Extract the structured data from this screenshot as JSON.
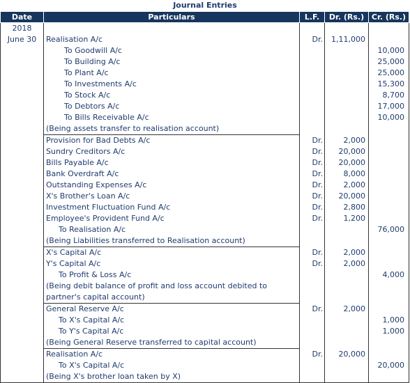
{
  "title": "Journal Entries",
  "headers": {
    "date": "Date",
    "particulars": "Particulars",
    "lf": "L.F.",
    "dr": "Dr. (Rs.)",
    "cr": "Cr. (Rs.)"
  },
  "rows": [
    {
      "date": "2018",
      "particulars": "",
      "indent": 0,
      "lf": "",
      "dr": "",
      "cr": "",
      "sep": false
    },
    {
      "date": "June 30",
      "particulars": "Realisation A/c",
      "indent": 0,
      "lf": "Dr.",
      "dr": "1,11,000",
      "cr": "",
      "sep": false
    },
    {
      "date": "",
      "particulars": "To Goodwill A/c",
      "indent": 2,
      "lf": "",
      "dr": "",
      "cr": "10,000",
      "sep": false
    },
    {
      "date": "",
      "particulars": "To Building A/c",
      "indent": 2,
      "lf": "",
      "dr": "",
      "cr": "25,000",
      "sep": false
    },
    {
      "date": "",
      "particulars": "To Plant A/c",
      "indent": 2,
      "lf": "",
      "dr": "",
      "cr": "25,000",
      "sep": false
    },
    {
      "date": "",
      "particulars": "To Investments A/c",
      "indent": 2,
      "lf": "",
      "dr": "",
      "cr": "15,300",
      "sep": false
    },
    {
      "date": "",
      "particulars": "To Stock A/c",
      "indent": 2,
      "lf": "",
      "dr": "",
      "cr": "8,700",
      "sep": false
    },
    {
      "date": "",
      "particulars": "To Debtors A/c",
      "indent": 2,
      "lf": "",
      "dr": "",
      "cr": "17,000",
      "sep": false
    },
    {
      "date": "",
      "particulars": "To Bills Receivable A/c",
      "indent": 2,
      "lf": "",
      "dr": "",
      "cr": "10,000",
      "sep": false
    },
    {
      "date": "",
      "particulars": "(Being assets transfer to realisation account)",
      "indent": 0,
      "lf": "",
      "dr": "",
      "cr": "",
      "sep": false
    },
    {
      "date": "",
      "particulars": "Provision for Bad Debts A/c",
      "indent": 0,
      "lf": "Dr.",
      "dr": "2,000",
      "cr": "",
      "sep": true
    },
    {
      "date": "",
      "particulars": "Sundry Creditors A/c",
      "indent": 0,
      "lf": "Dr.",
      "dr": "20,000",
      "cr": "",
      "sep": false
    },
    {
      "date": "",
      "particulars": "Bills Payable A/c",
      "indent": 0,
      "lf": "Dr.",
      "dr": "20,000",
      "cr": "",
      "sep": false
    },
    {
      "date": "",
      "particulars": "Bank Overdraft A/c",
      "indent": 0,
      "lf": "Dr.",
      "dr": "8,000",
      "cr": "",
      "sep": false
    },
    {
      "date": "",
      "particulars": "Outstanding Expenses A/c",
      "indent": 0,
      "lf": "Dr.",
      "dr": "2,000",
      "cr": "",
      "sep": false
    },
    {
      "date": "",
      "particulars": "X's Brother's Loan A/c",
      "indent": 0,
      "lf": "Dr.",
      "dr": "20,000",
      "cr": "",
      "sep": false
    },
    {
      "date": "",
      "particulars": "Investment Fluctuation Fund A/c",
      "indent": 0,
      "lf": "Dr.",
      "dr": "2,800",
      "cr": "",
      "sep": false
    },
    {
      "date": "",
      "particulars": "Employee's Provident Fund A/c",
      "indent": 0,
      "lf": "Dr.",
      "dr": "1,200",
      "cr": "",
      "sep": false
    },
    {
      "date": "",
      "particulars": "To Realisation A/c",
      "indent": 1,
      "lf": "",
      "dr": "",
      "cr": "76,000",
      "sep": false
    },
    {
      "date": "",
      "particulars": "(Being Liabilities transferred to Realisation account)",
      "indent": 0,
      "lf": "",
      "dr": "",
      "cr": "",
      "sep": false
    },
    {
      "date": "",
      "particulars": "X's Capital A/c",
      "indent": 0,
      "lf": "Dr.",
      "dr": "2,000",
      "cr": "",
      "sep": true
    },
    {
      "date": "",
      "particulars": "Y's Capital A/c",
      "indent": 0,
      "lf": "Dr.",
      "dr": "2,000",
      "cr": "",
      "sep": false
    },
    {
      "date": "",
      "particulars": "To Profit & Loss A/c",
      "indent": 1,
      "lf": "",
      "dr": "",
      "cr": "4,000",
      "sep": false
    },
    {
      "date": "",
      "particulars": "(Being debit balance of profit and loss account debited to partner's capital account)",
      "indent": 0,
      "lf": "",
      "dr": "",
      "cr": "",
      "sep": false,
      "wrap": true
    },
    {
      "date": "",
      "particulars": "General Reserve A/c",
      "indent": 0,
      "lf": "Dr.",
      "dr": "2,000",
      "cr": "",
      "sep": true
    },
    {
      "date": "",
      "particulars": "To X's Capital A/c",
      "indent": 1,
      "lf": "",
      "dr": "",
      "cr": "1,000",
      "sep": false
    },
    {
      "date": "",
      "particulars": "To Y's Capital A/c",
      "indent": 1,
      "lf": "",
      "dr": "",
      "cr": "1,000",
      "sep": false
    },
    {
      "date": "",
      "particulars": "(Being General Reserve transferred to capital account)",
      "indent": 0,
      "lf": "",
      "dr": "",
      "cr": "",
      "sep": false
    },
    {
      "date": "",
      "particulars": "Realisation A/c",
      "indent": 0,
      "lf": "Dr.",
      "dr": "20,000",
      "cr": "",
      "sep": true
    },
    {
      "date": "",
      "particulars": "To X's Capital A/c",
      "indent": 1,
      "lf": "",
      "dr": "",
      "cr": "20,000",
      "sep": false
    },
    {
      "date": "",
      "particulars": "(Being X's brother loan taken by X)",
      "indent": 0,
      "lf": "",
      "dr": "",
      "cr": "",
      "sep": false
    }
  ]
}
